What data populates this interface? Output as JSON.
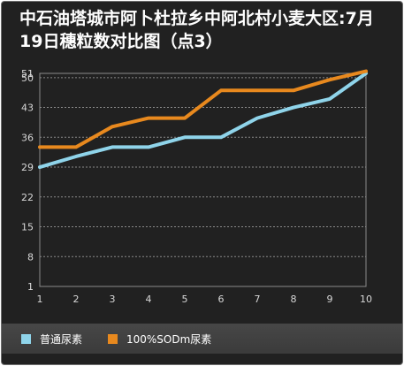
{
  "chart_data": {
    "type": "line",
    "title": "中石油塔城市阿卜杜拉乡中阿北村小麦大区:7月19日穗粒数对比图（点3）",
    "xlabel": "",
    "ylabel": "",
    "x": [
      1,
      2,
      3,
      4,
      5,
      6,
      7,
      8,
      9,
      10
    ],
    "y_ticks": [
      1,
      8,
      15,
      22,
      29,
      36,
      43,
      50,
      51
    ],
    "ylim": [
      1,
      51
    ],
    "grid": true,
    "legend_position": "bottom",
    "series": [
      {
        "name": "普通尿素",
        "color": "#8fd4ea",
        "values": [
          29,
          31.5,
          33.7,
          33.7,
          36,
          36,
          40.5,
          43,
          45,
          51
        ]
      },
      {
        "name": "100%SODm尿素",
        "color": "#e8891e",
        "values": [
          33.7,
          33.7,
          38.5,
          40.5,
          40.5,
          47,
          47,
          47,
          49.5,
          51.5
        ]
      }
    ]
  }
}
